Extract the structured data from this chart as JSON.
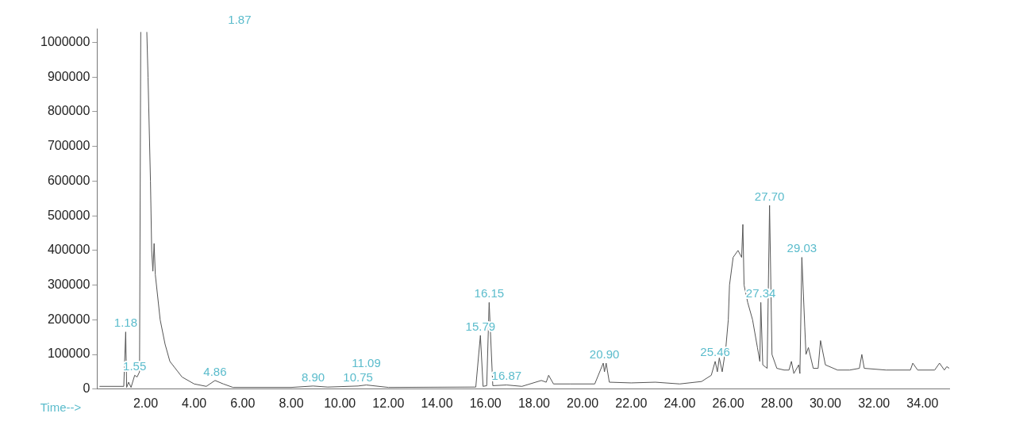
{
  "chart_data": {
    "type": "line",
    "xlabel": "Time-->",
    "series": [
      {
        "color": "#555555",
        "x": [
          0.1,
          1.1,
          1.18,
          1.22,
          1.3,
          1.4,
          1.55,
          1.65,
          1.75,
          1.8,
          1.87,
          2.05,
          2.1,
          2.2,
          2.25,
          2.3,
          2.35,
          2.4,
          2.6,
          2.8,
          3.0,
          3.5,
          4.0,
          4.5,
          4.86,
          5.2,
          5.6,
          8.0,
          8.9,
          9.5,
          10.75,
          11.09,
          12.0,
          15.6,
          15.79,
          15.9,
          16.05,
          16.15,
          16.3,
          16.87,
          17.5,
          18.3,
          18.5,
          18.6,
          18.8,
          19.5,
          20.5,
          20.85,
          20.9,
          20.97,
          21.1,
          22.0,
          23.0,
          24.0,
          24.9,
          25.3,
          25.46,
          25.55,
          25.63,
          25.75,
          25.9,
          26.0,
          26.05,
          26.2,
          26.4,
          26.55,
          26.6,
          26.65,
          26.8,
          27.0,
          27.2,
          27.3,
          27.34,
          27.42,
          27.6,
          27.7,
          27.8,
          28.0,
          28.3,
          28.5,
          28.6,
          28.7,
          28.9,
          28.95,
          29.03,
          29.15,
          29.2,
          29.3,
          29.5,
          29.7,
          29.8,
          30.0,
          30.5,
          31.0,
          31.4,
          31.5,
          31.6,
          32.5,
          33.5,
          33.6,
          33.8,
          34.5,
          34.7,
          34.9,
          35.0,
          35.1
        ],
        "values": [
          8000,
          8000,
          165000,
          5000,
          20000,
          5000,
          40000,
          35000,
          50000,
          1030000,
          null,
          1030000,
          900000,
          600000,
          400000,
          340000,
          420000,
          330000,
          200000,
          130000,
          80000,
          35000,
          15000,
          8000,
          25000,
          15000,
          5000,
          5000,
          9000,
          6000,
          9000,
          12000,
          5000,
          6000,
          155000,
          8000,
          10000,
          250000,
          10000,
          12000,
          8000,
          25000,
          20000,
          40000,
          15000,
          15000,
          15000,
          75000,
          50000,
          75000,
          20000,
          18000,
          20000,
          15000,
          22000,
          40000,
          80000,
          50000,
          90000,
          50000,
          120000,
          200000,
          300000,
          380000,
          400000,
          380000,
          475000,
          300000,
          250000,
          200000,
          120000,
          80000,
          250000,
          70000,
          60000,
          530000,
          100000,
          60000,
          55000,
          55000,
          80000,
          45000,
          70000,
          45000,
          380000,
          180000,
          100000,
          120000,
          60000,
          60000,
          140000,
          70000,
          55000,
          55000,
          60000,
          100000,
          60000,
          55000,
          55000,
          75000,
          55000,
          55000,
          75000,
          55000,
          65000,
          60000
        ]
      }
    ],
    "xlim": [
      0,
      35.1
    ],
    "ylim": [
      0,
      1040000
    ],
    "xticks": [
      {
        "value": 2,
        "label": "2.00"
      },
      {
        "value": 4,
        "label": "4.00"
      },
      {
        "value": 6,
        "label": "6.00"
      },
      {
        "value": 8,
        "label": "8.00"
      },
      {
        "value": 10,
        "label": "10.00"
      },
      {
        "value": 12,
        "label": "12.00"
      },
      {
        "value": 14,
        "label": "14.00"
      },
      {
        "value": 16,
        "label": "16.00"
      },
      {
        "value": 18,
        "label": "18.00"
      },
      {
        "value": 20,
        "label": "20.00"
      },
      {
        "value": 22,
        "label": "22.00"
      },
      {
        "value": 24,
        "label": "24.00"
      },
      {
        "value": 26,
        "label": "26.00"
      },
      {
        "value": 28,
        "label": "28.00"
      },
      {
        "value": 30,
        "label": "30.00"
      },
      {
        "value": 32,
        "label": "32.00"
      },
      {
        "value": 34,
        "label": "34.00"
      }
    ],
    "yticks": [
      0,
      100000,
      200000,
      300000,
      400000,
      500000,
      600000,
      700000,
      800000,
      900000,
      1000000
    ],
    "grid": false,
    "legend": false,
    "marker": "none",
    "line_style": "solid",
    "annotations": [
      {
        "text": "1.18",
        "x": 1.18,
        "y": 165000
      },
      {
        "text": "1.55",
        "x": 1.55,
        "y": 40000
      },
      "1.87",
      {
        "text": "4.86",
        "x": 4.86,
        "y": 25000
      },
      {
        "text": "8.90",
        "x": 8.9,
        "y": 9000
      },
      {
        "text": "10.75",
        "x": 10.75,
        "y": 9000
      },
      {
        "text": "11.09",
        "x": 11.09,
        "y": 12000
      },
      {
        "text": "15.79",
        "x": 15.79,
        "y": 155000
      },
      {
        "text": "16.15",
        "x": 16.15,
        "y": 250000
      },
      {
        "text": "16.87",
        "x": 16.87,
        "y": 12000
      },
      {
        "text": "20.90",
        "x": 20.9,
        "y": 75000
      },
      {
        "text": "25.46",
        "x": 25.46,
        "y": 80000
      },
      {
        "text": "27.34",
        "x": 27.34,
        "y": 250000
      },
      {
        "text": "27.70",
        "x": 27.7,
        "y": 530000
      },
      {
        "text": "29.03",
        "x": 29.03,
        "y": 380000
      }
    ]
  }
}
